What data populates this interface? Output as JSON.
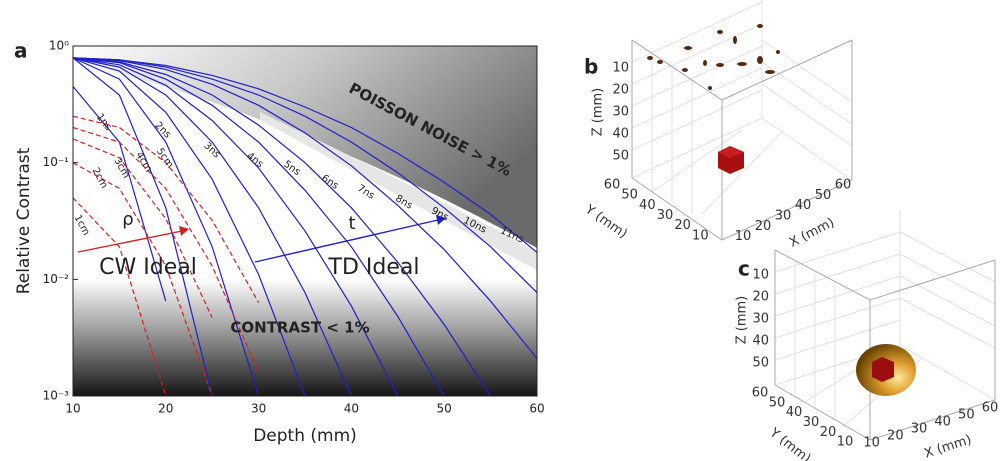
{
  "chart_data": [
    {
      "type": "line",
      "panel": "a",
      "x_label": "Depth (mm)",
      "y_label": "Relative Contrast",
      "x": [
        10,
        15,
        20,
        25,
        30,
        35,
        40,
        45,
        50,
        55,
        60
      ],
      "xlim": [
        10,
        60
      ],
      "xticks": [
        10,
        20,
        30,
        40,
        50,
        60
      ],
      "ylim": [
        0.001,
        1
      ],
      "log_y": true,
      "yticks": [
        {
          "value": 0.001,
          "label": "10⁻³"
        },
        {
          "value": 0.01,
          "label": "10⁻²"
        },
        {
          "value": 0.1,
          "label": "10⁻¹"
        },
        {
          "value": 1,
          "label": "10⁰"
        }
      ],
      "annotations": [
        "POISSON NOISE > 1%",
        "CONTRAST < 1%",
        "CW Ideal",
        "TD Ideal",
        "ρ",
        "t"
      ],
      "series": [
        {
          "name": "1ns",
          "color": "#2020c8",
          "dash": false,
          "values": [
            0.45,
            0.15,
            0.0065,
            null,
            null,
            null,
            null,
            null,
            null,
            null,
            null
          ]
        },
        {
          "name": "2ns",
          "color": "#2020c8",
          "dash": false,
          "values": [
            0.79,
            0.38,
            0.041,
            0.001,
            null,
            null,
            null,
            null,
            null,
            null,
            null
          ]
        },
        {
          "name": "3ns",
          "color": "#2020c8",
          "dash": false,
          "values": [
            0.79,
            0.52,
            0.15,
            0.019,
            0.001,
            null,
            null,
            null,
            null,
            null,
            null
          ]
        },
        {
          "name": "4ns",
          "color": "#2020c8",
          "dash": false,
          "values": [
            0.79,
            0.61,
            0.27,
            0.072,
            0.011,
            0.001,
            null,
            null,
            null,
            null,
            null
          ]
        },
        {
          "name": "5ns",
          "color": "#2020c8",
          "dash": false,
          "values": [
            0.79,
            0.66,
            0.38,
            0.15,
            0.041,
            0.0077,
            0.001,
            null,
            null,
            null,
            null
          ]
        },
        {
          "name": "6ns",
          "color": "#2020c8",
          "dash": false,
          "values": [
            0.79,
            0.69,
            0.46,
            0.23,
            0.09,
            0.026,
            0.0059,
            0.001,
            null,
            null,
            null
          ]
        },
        {
          "name": "7ns",
          "color": "#2020c8",
          "dash": false,
          "values": [
            0.79,
            0.72,
            0.52,
            0.31,
            0.15,
            0.058,
            0.019,
            0.0048,
            0.001,
            null,
            null
          ]
        },
        {
          "name": "8ns",
          "color": "#2020c8",
          "dash": false,
          "values": [
            0.79,
            0.73,
            0.57,
            0.38,
            0.21,
            0.1,
            0.041,
            0.014,
            0.0041,
            0.001,
            null
          ]
        },
        {
          "name": "9ns",
          "color": "#2020c8",
          "dash": false,
          "values": [
            0.79,
            0.75,
            0.63,
            0.47,
            0.31,
            0.18,
            0.094,
            0.043,
            0.018,
            0.0065,
            0.0021
          ]
        },
        {
          "name": "10ns",
          "color": "#2020c8",
          "dash": false,
          "values": [
            0.79,
            0.76,
            0.66,
            0.52,
            0.38,
            0.25,
            0.15,
            0.082,
            0.041,
            0.019,
            0.0077
          ]
        },
        {
          "name": "11ns",
          "color": "#2020c8",
          "dash": false,
          "values": [
            0.79,
            0.76,
            0.68,
            0.56,
            0.43,
            0.3,
            0.2,
            0.12,
            0.068,
            0.036,
            0.017
          ]
        },
        {
          "name": "1cm",
          "color": "#d42020",
          "dash": true,
          "values": [
            0.05,
            0.019,
            0.001,
            null,
            null,
            null,
            null,
            null,
            null,
            null,
            null
          ]
        },
        {
          "name": "2cm",
          "color": "#d42020",
          "dash": true,
          "values": [
            0.1,
            0.06,
            0.013,
            0.001,
            null,
            null,
            null,
            null,
            null,
            null,
            null
          ]
        },
        {
          "name": "3cm",
          "color": "#d42020",
          "dash": true,
          "values": [
            0.16,
            0.11,
            0.033,
            0.0047,
            null,
            null,
            null,
            null,
            null,
            null,
            null
          ]
        },
        {
          "name": "4cm",
          "color": "#d42020",
          "dash": true,
          "values": [
            0.2,
            0.15,
            0.06,
            0.013,
            0.0016,
            null,
            null,
            null,
            null,
            null,
            null
          ]
        },
        {
          "name": "5cm",
          "color": "#d42020",
          "dash": true,
          "values": [
            0.25,
            0.2,
            0.1,
            0.032,
            0.0063,
            null,
            null,
            null,
            null,
            null,
            null
          ]
        }
      ]
    },
    {
      "type": "scatter3d",
      "panel": "b",
      "x_label": "X (mm)",
      "y_label": "Y (mm)",
      "z_label": "Z (mm)",
      "xlim": [
        0,
        60
      ],
      "ylim": [
        0,
        60
      ],
      "zlim": [
        0,
        60
      ],
      "xticks": [
        10,
        20,
        30,
        40,
        50,
        60
      ],
      "yticks": [
        10,
        20,
        30,
        40,
        50,
        60
      ],
      "zticks": [
        10,
        20,
        30,
        40,
        50
      ]
    },
    {
      "type": "scatter3d",
      "panel": "c",
      "x_label": "X (mm)",
      "y_label": "Y (mm)",
      "z_label": "Z (mm)",
      "xlim": [
        0,
        60
      ],
      "ylim": [
        0,
        60
      ],
      "zlim": [
        0,
        60
      ],
      "xticks": [
        10,
        20,
        30,
        40,
        50,
        60
      ],
      "yticks": [
        10,
        20,
        30,
        40,
        50,
        60
      ],
      "zticks": [
        10,
        20,
        30,
        40,
        50
      ]
    }
  ]
}
